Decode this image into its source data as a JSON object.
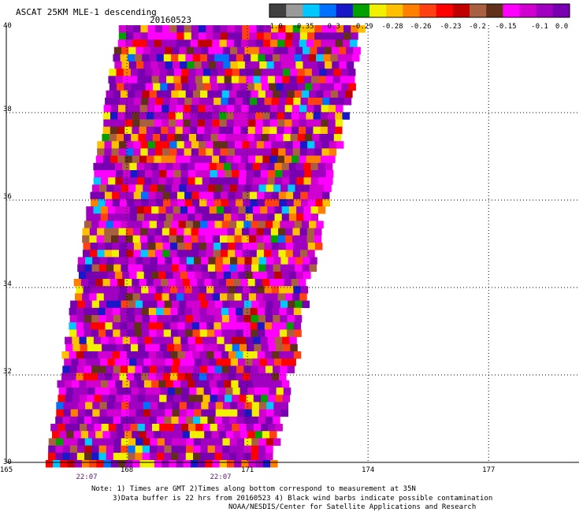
{
  "title": "ASCAT 25KM MLE-1 descending",
  "date": "20160523",
  "colorbar": {
    "colors": [
      "#404040",
      "#9a9a9a",
      "#00c8ff",
      "#0070ff",
      "#1818c8",
      "#00a000",
      "#f0f000",
      "#ffc000",
      "#ff8000",
      "#ff4010",
      "#ff0000",
      "#c00000",
      "#a86040",
      "#603018",
      "#ff00ff",
      "#d000d0",
      "#a000c0",
      "#7800b0"
    ],
    "labels": [
      "-1.0",
      "-0.35",
      "-0.3",
      "-0.29",
      "-0.28",
      "-0.26",
      "-0.23",
      "-0.2",
      "-0.15",
      "-0.1",
      "0.0"
    ]
  },
  "axes": {
    "lat_ticks": [
      "40",
      "38",
      "36",
      "34",
      "32",
      "30"
    ],
    "lon_ticks": [
      "165",
      "168",
      "171",
      "174",
      "177"
    ]
  },
  "times": [
    "22:07",
    "22:07"
  ],
  "notes": [
    "Note: 1) Times are GMT 2)Times along bottom correspond to measurement at 35N",
    "3)Data buffer is 22 hrs from 20160523 4) Black wind barbs indicate possible contamination",
    "NOAA/NESDIS/Center for Satellite Applications and Research"
  ]
}
